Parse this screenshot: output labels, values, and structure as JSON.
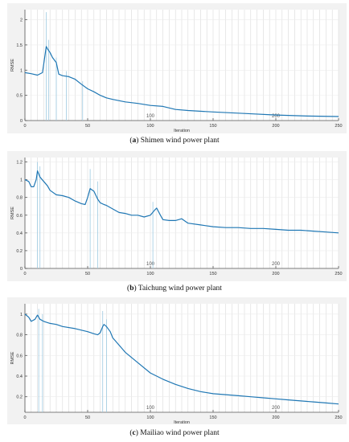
{
  "chart_data": [
    {
      "type": "line",
      "caption_letter": "a",
      "caption_text": "Shimen wind power plant",
      "xlabel": "Iteration",
      "ylabel": "RMSE",
      "xlim": [
        0,
        250
      ],
      "ylim": [
        0,
        2.2
      ],
      "xticks": [
        "0",
        "50",
        "100",
        "150",
        "200",
        "250"
      ],
      "xtick_values": [
        0,
        50,
        100,
        150,
        200,
        250
      ],
      "yticks": [
        "0",
        "0.5",
        "1",
        "1.5",
        "2"
      ],
      "ytick_values": [
        0,
        0.5,
        1,
        1.5,
        2
      ],
      "inline_labels": [
        "100",
        "200"
      ],
      "inline_label_values": [
        100,
        200
      ],
      "grid": true,
      "series": [
        {
          "color": "#1f77b4",
          "x": [
            0,
            5,
            10,
            14,
            16,
            17,
            18,
            20,
            22,
            25,
            27,
            30,
            35,
            40,
            45,
            50,
            55,
            60,
            65,
            70,
            80,
            90,
            100,
            110,
            120,
            130,
            150,
            175,
            200,
            225,
            250
          ],
          "y": [
            0.95,
            0.93,
            0.9,
            0.95,
            1.3,
            1.47,
            1.42,
            1.35,
            1.25,
            1.15,
            0.92,
            0.89,
            0.87,
            0.82,
            0.72,
            0.63,
            0.57,
            0.5,
            0.45,
            0.42,
            0.37,
            0.34,
            0.3,
            0.28,
            0.22,
            0.2,
            0.17,
            0.14,
            0.11,
            0.09,
            0.08
          ]
        }
      ],
      "spikes": [
        {
          "x": 17,
          "y": 2.15
        },
        {
          "x": 19,
          "y": 1.6
        },
        {
          "x": 25,
          "y": 1.25
        },
        {
          "x": 33,
          "y": 0.98
        },
        {
          "x": 46,
          "y": 0.78
        }
      ]
    },
    {
      "type": "line",
      "caption_letter": "b",
      "caption_text": "Taichung wind power plant",
      "xlabel": "",
      "ylabel": "RMSE",
      "xlim": [
        0,
        250
      ],
      "ylim": [
        0,
        1.25
      ],
      "xticks": [
        "0",
        "50",
        "100",
        "150",
        "200",
        "250"
      ],
      "xtick_values": [
        0,
        50,
        100,
        150,
        200,
        250
      ],
      "yticks": [
        "0",
        "0.2",
        "0.4",
        "0.6",
        "0.8",
        "1",
        "1.2"
      ],
      "ytick_values": [
        0,
        0.2,
        0.4,
        0.6,
        0.8,
        1,
        1.2
      ],
      "inline_labels": [
        "100",
        "200"
      ],
      "inline_label_values": [
        100,
        200
      ],
      "grid": true,
      "series": [
        {
          "color": "#1f77b4",
          "x": [
            0,
            3,
            5,
            7,
            9,
            10,
            12,
            15,
            18,
            20,
            25,
            30,
            35,
            40,
            45,
            48,
            50,
            52,
            55,
            58,
            60,
            63,
            65,
            70,
            75,
            80,
            85,
            90,
            95,
            100,
            103,
            105,
            108,
            110,
            115,
            120,
            125,
            130,
            140,
            150,
            160,
            170,
            180,
            190,
            200,
            210,
            220,
            230,
            240,
            250
          ],
          "y": [
            1.0,
            0.98,
            0.92,
            0.92,
            1.0,
            1.1,
            1.03,
            0.98,
            0.93,
            0.88,
            0.83,
            0.82,
            0.8,
            0.76,
            0.73,
            0.72,
            0.8,
            0.9,
            0.87,
            0.78,
            0.74,
            0.72,
            0.71,
            0.67,
            0.63,
            0.62,
            0.6,
            0.6,
            0.58,
            0.6,
            0.65,
            0.68,
            0.6,
            0.55,
            0.54,
            0.54,
            0.56,
            0.51,
            0.49,
            0.47,
            0.46,
            0.46,
            0.45,
            0.45,
            0.44,
            0.43,
            0.43,
            0.42,
            0.41,
            0.4
          ]
        }
      ],
      "spikes": [
        {
          "x": 10,
          "y": 1.2
        },
        {
          "x": 12,
          "y": 1.15
        },
        {
          "x": 52,
          "y": 1.12
        },
        {
          "x": 58,
          "y": 0.98
        },
        {
          "x": 102,
          "y": 0.75
        }
      ]
    },
    {
      "type": "line",
      "caption_letter": "c",
      "caption_text": "Mailiao wind power plant",
      "xlabel": "Iteration",
      "ylabel": "RMSE",
      "xlim": [
        0,
        250
      ],
      "ylim": [
        0.05,
        1.1
      ],
      "xticks": [
        "0",
        "50",
        "100",
        "150",
        "200",
        "250"
      ],
      "xtick_values": [
        0,
        50,
        100,
        150,
        200,
        250
      ],
      "yticks": [
        "0.2",
        "0.4",
        "0.6",
        "0.8",
        "1"
      ],
      "ytick_values": [
        0.2,
        0.4,
        0.6,
        0.8,
        1
      ],
      "inline_labels": [
        "100",
        "200"
      ],
      "inline_label_values": [
        100,
        200
      ],
      "grid": true,
      "series": [
        {
          "color": "#1f77b4",
          "x": [
            0,
            3,
            5,
            8,
            10,
            12,
            15,
            20,
            25,
            30,
            40,
            50,
            55,
            58,
            60,
            62,
            63,
            65,
            68,
            70,
            75,
            80,
            90,
            100,
            110,
            120,
            130,
            140,
            150,
            160,
            170,
            180,
            190,
            200,
            210,
            220,
            230,
            240,
            250
          ],
          "y": [
            1.0,
            0.97,
            0.93,
            0.95,
            0.99,
            0.95,
            0.93,
            0.91,
            0.9,
            0.88,
            0.86,
            0.83,
            0.81,
            0.8,
            0.82,
            0.88,
            0.9,
            0.88,
            0.83,
            0.77,
            0.7,
            0.63,
            0.53,
            0.43,
            0.37,
            0.32,
            0.28,
            0.25,
            0.23,
            0.22,
            0.21,
            0.2,
            0.19,
            0.18,
            0.17,
            0.16,
            0.15,
            0.14,
            0.13
          ]
        }
      ],
      "spikes": [
        {
          "x": 11,
          "y": 1.05
        },
        {
          "x": 14,
          "y": 1.0
        },
        {
          "x": 62,
          "y": 1.03
        },
        {
          "x": 65,
          "y": 0.95
        }
      ]
    }
  ]
}
